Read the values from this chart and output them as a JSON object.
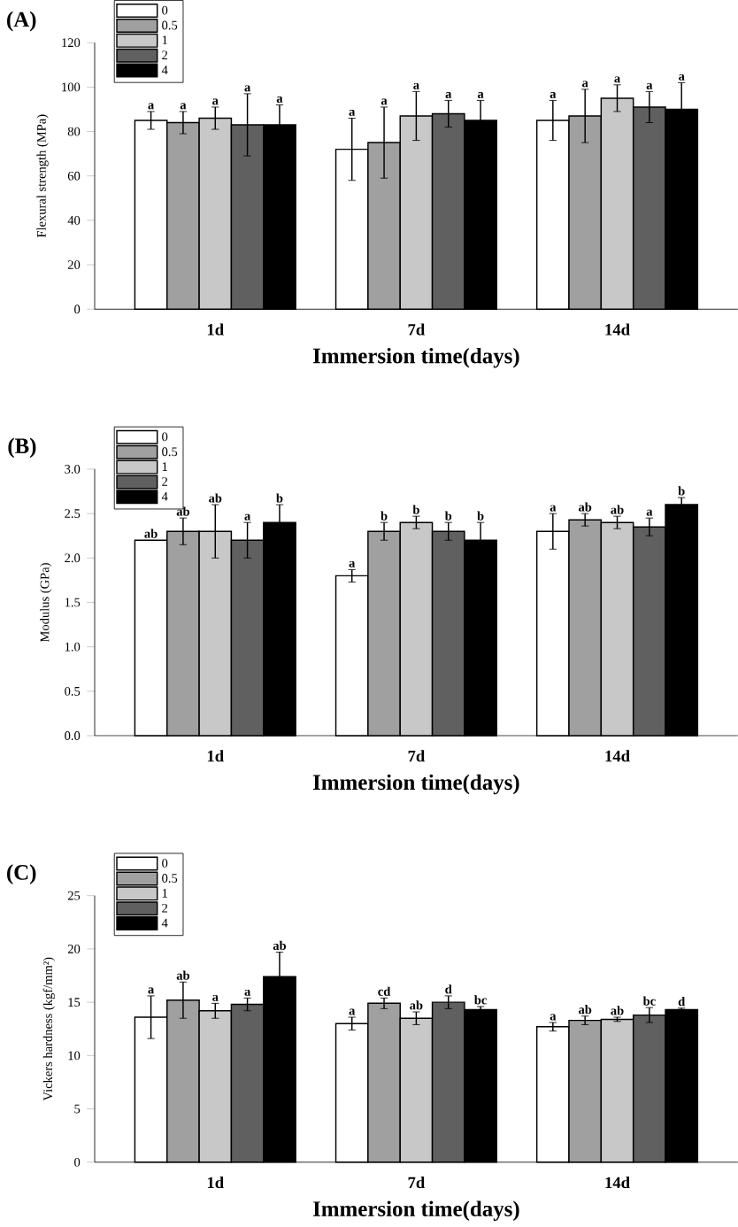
{
  "chart_data": [
    {
      "type": "bar",
      "title": "(A)",
      "xlabel": "Immersion time(days)",
      "ylabel": "Flexural strength (MPa)",
      "categories": [
        "1d",
        "7d",
        "14d"
      ],
      "ylim": [
        0,
        120
      ],
      "yticks": [
        0,
        20,
        40,
        60,
        80,
        100,
        120
      ],
      "legend": "top left",
      "series": [
        {
          "name": "0",
          "color": "#ffffff",
          "values": [
            85,
            72,
            85
          ],
          "errors": [
            4,
            14,
            9
          ],
          "value_labels": [
            "a",
            "a",
            "a"
          ]
        },
        {
          "name": "0.5",
          "color": "#a0a0a0",
          "values": [
            84,
            75,
            87
          ],
          "errors": [
            5,
            16,
            12
          ],
          "value_labels": [
            "a",
            "a",
            "a"
          ]
        },
        {
          "name": "1",
          "color": "#c8c8c8",
          "values": [
            86,
            87,
            95
          ],
          "errors": [
            5,
            11,
            6
          ],
          "value_labels": [
            "a",
            "a",
            "a"
          ]
        },
        {
          "name": "2",
          "color": "#606060",
          "values": [
            83,
            88,
            91
          ],
          "errors": [
            14,
            6,
            7
          ],
          "value_labels": [
            "a",
            "a",
            "a"
          ]
        },
        {
          "name": "4",
          "color": "#000000",
          "values": [
            83,
            85,
            90
          ],
          "errors": [
            9,
            9,
            12
          ],
          "value_labels": [
            "a",
            "a",
            "a"
          ]
        }
      ]
    },
    {
      "type": "bar",
      "title": "(B)",
      "xlabel": "Immersion time(days)",
      "ylabel": "Modulus (GPa)",
      "categories": [
        "1d",
        "7d",
        "14d"
      ],
      "ylim": [
        0,
        3.0
      ],
      "yticks": [
        {
          "value": 0,
          "label": "0.0"
        },
        0.5,
        {
          "value": 1,
          "label": "1.0"
        },
        1.5,
        {
          "value": 2,
          "label": "2.0"
        },
        2.5,
        {
          "value": 3,
          "label": "3.0"
        }
      ],
      "legend": "top left",
      "series": [
        {
          "name": "0",
          "color": "#ffffff",
          "values": [
            2.2,
            1.8,
            2.3
          ],
          "errors": [
            null,
            0.07,
            0.2
          ],
          "value_labels": [
            "ab",
            "a",
            "a"
          ]
        },
        {
          "name": "0.5",
          "color": "#a0a0a0",
          "values": [
            2.3,
            2.3,
            2.43
          ],
          "errors": [
            0.15,
            0.1,
            0.07
          ],
          "value_labels": [
            "ab",
            "b",
            "ab"
          ]
        },
        {
          "name": "1",
          "color": "#c8c8c8",
          "values": [
            2.3,
            2.4,
            2.4
          ],
          "errors": [
            0.3,
            0.07,
            0.07
          ],
          "value_labels": [
            "ab",
            "b",
            "ab"
          ]
        },
        {
          "name": "2",
          "color": "#606060",
          "values": [
            2.2,
            2.3,
            2.35
          ],
          "errors": [
            0.2,
            0.1,
            0.1
          ],
          "value_labels": [
            "a",
            "b",
            "a"
          ]
        },
        {
          "name": "4",
          "color": "#000000",
          "values": [
            2.4,
            2.2,
            2.6
          ],
          "errors": [
            0.2,
            0.2,
            0.08
          ],
          "value_labels": [
            "b",
            "b",
            "b"
          ]
        }
      ]
    },
    {
      "type": "bar",
      "title": "(C)",
      "xlabel": "Immersion time(days)",
      "ylabel": "Vickers hardness (kgf/mm²)",
      "categories": [
        "1d",
        "7d",
        "14d"
      ],
      "ylim": [
        0,
        25
      ],
      "yticks": [
        0,
        5,
        10,
        15,
        20,
        25
      ],
      "legend": "top left",
      "series": [
        {
          "name": "0",
          "color": "#ffffff",
          "values": [
            13.6,
            13.0,
            12.7
          ],
          "errors": [
            2,
            0.6,
            0.4
          ],
          "value_labels": [
            "a",
            "a",
            "a"
          ]
        },
        {
          "name": "0.5",
          "color": "#a0a0a0",
          "values": [
            15.2,
            14.9,
            13.3
          ],
          "errors": [
            1.7,
            0.5,
            0.4
          ],
          "value_labels": [
            "ab",
            "cd",
            "ab"
          ]
        },
        {
          "name": "1",
          "color": "#c8c8c8",
          "values": [
            14.2,
            13.5,
            13.4
          ],
          "errors": [
            0.7,
            0.6,
            0.2
          ],
          "value_labels": [
            "a",
            "ab",
            "ab"
          ]
        },
        {
          "name": "2",
          "color": "#606060",
          "values": [
            14.8,
            15.0,
            13.8
          ],
          "errors": [
            0.6,
            0.6,
            0.7
          ],
          "value_labels": [
            "a",
            "d",
            "bc"
          ]
        },
        {
          "name": "4",
          "color": "#000000",
          "values": [
            17.4,
            14.3,
            14.3
          ],
          "errors": [
            2.3,
            0.3,
            0.15
          ],
          "value_labels": [
            "ab",
            "bc",
            "d"
          ]
        }
      ]
    }
  ]
}
